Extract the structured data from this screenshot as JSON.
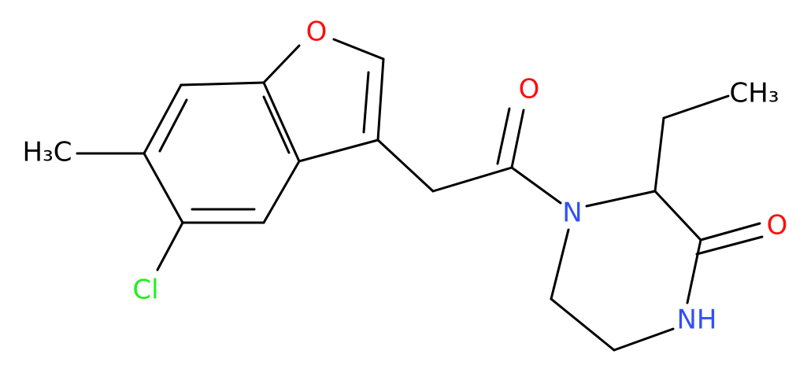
{
  "molecule": {
    "atoms": [
      {
        "label": "O"
      },
      {
        "label": "O"
      },
      {
        "label": "CH₃"
      },
      {
        "label": "H₃C"
      },
      {
        "label": "Cl"
      },
      {
        "label": "N"
      },
      {
        "label": "O"
      },
      {
        "label": "NH"
      }
    ]
  }
}
